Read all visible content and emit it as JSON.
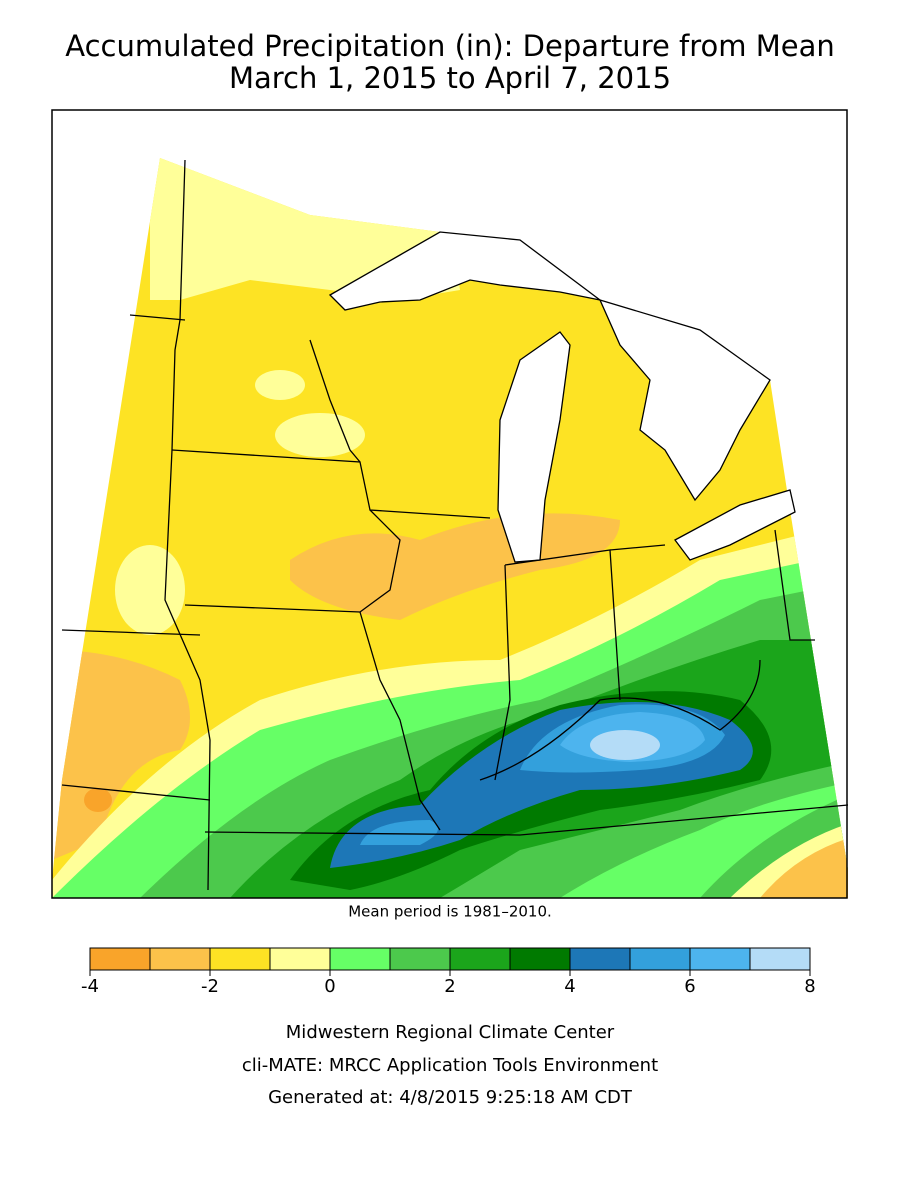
{
  "title": [
    "Accumulated Precipitation (in): Departure from Mean",
    "March 1, 2015 to April 7, 2015"
  ],
  "note": "Mean period is 1981–2010.",
  "legend": {
    "bins": [
      -4,
      -3,
      -2,
      -1,
      0,
      1,
      2,
      3,
      4,
      5,
      6,
      7,
      8
    ],
    "colors": [
      "#f9a42a",
      "#fcc24a",
      "#fde324",
      "#ffff99",
      "#66ff66",
      "#4cc94c",
      "#1ba51b",
      "#007a00",
      "#1d77b7",
      "#33a0dc",
      "#4db4ee",
      "#b4dcf7"
    ],
    "ticks": [
      -4,
      -2,
      0,
      2,
      4,
      6,
      8
    ]
  },
  "footer": [
    "Midwestern Regional Climate Center",
    "cli-MATE: MRCC Application Tools Environment",
    "Generated at: 4/8/2015 9:25:18 AM CDT"
  ]
}
